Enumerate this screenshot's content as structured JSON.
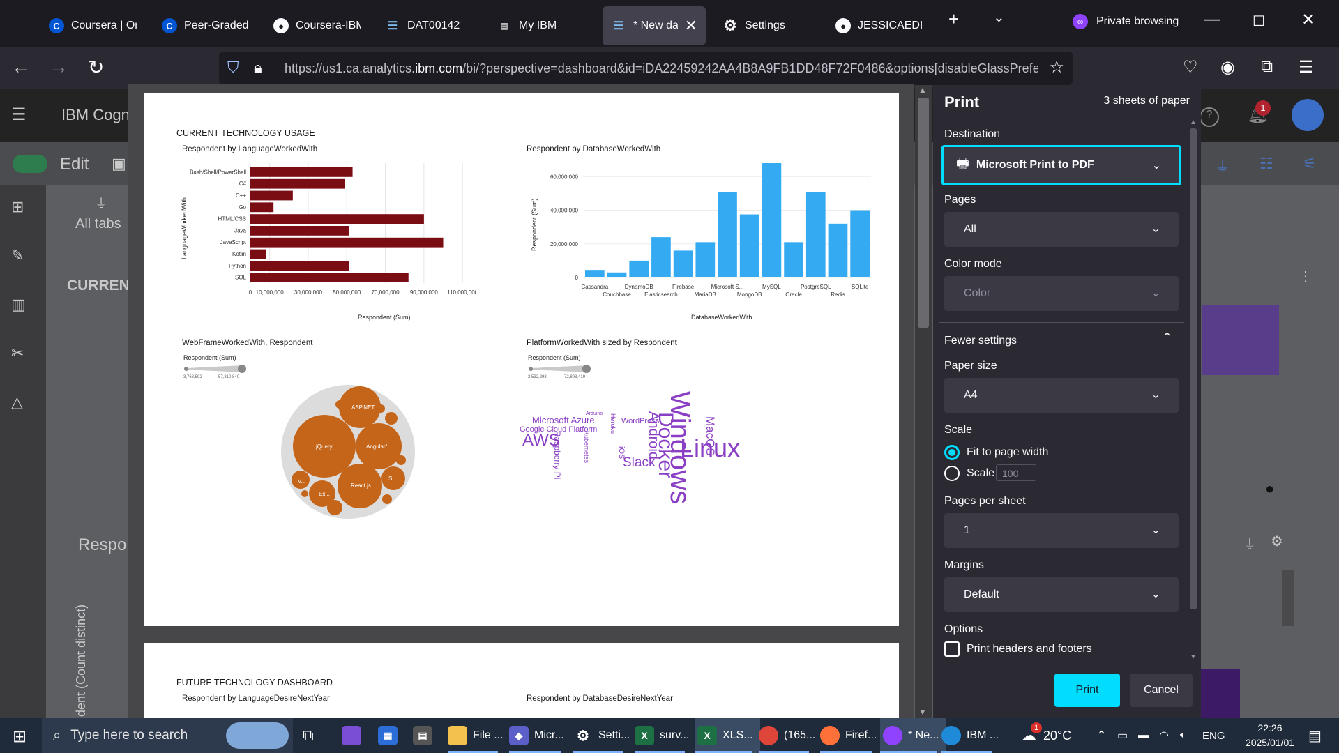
{
  "tabs": [
    {
      "label": "Coursera | Onli",
      "icon": "coursera-icon"
    },
    {
      "label": "Peer-Graded A",
      "icon": "coursera-icon"
    },
    {
      "label": "Coursera-IBM-",
      "icon": "github-icon"
    },
    {
      "label": "DAT00142",
      "icon": "doc-icon"
    },
    {
      "label": "My IBM",
      "icon": "ibm-icon"
    },
    {
      "label": "* New da",
      "icon": "doc-icon",
      "active": true
    },
    {
      "label": "Settings",
      "icon": "gear-icon"
    },
    {
      "label": "JESSICAEDIME",
      "icon": "github-icon"
    }
  ],
  "private_label": "Private browsing",
  "url": {
    "prefix": "https://us1.ca.analytics.",
    "domain": "ibm.com",
    "suffix": "/bi/?perspective=dashboard&id=iDA22459242AA4B8A9FB1DD48F72F0486&options[disableGlassPrefetch]=true"
  },
  "app": {
    "brand": "IBM Cogn",
    "edit_label": "Edit",
    "all_tabs": "All tabs",
    "current_heading": "CURREN",
    "respo": "Respo",
    "vertical_axis": "dent (Count distinct)"
  },
  "preview": {
    "section1_title": "CURRENT TECHNOLOGY USAGE",
    "chart1": {
      "title": "Respondent by LanguageWorkedWith",
      "ylabel": "LanguageWorkedWith",
      "xlabel": "Respondent (Sum)",
      "ticks": [
        "0",
        "10,000,000",
        "30,000,000",
        "50,000,000",
        "70,000,000",
        "90,000,000",
        "110,000,000"
      ]
    },
    "chart2": {
      "title": "Respondent by DatabaseWorkedWith",
      "ylabel": "Respondent (Sum)",
      "xlabel": "DatabaseWorkedWith",
      "ticks": [
        "0",
        "20,000,000",
        "40,000,000",
        "60,000,000"
      ]
    },
    "chart3": {
      "title": "WebFrameWorkedWith, Respondent",
      "legend_title": "Respondent (Sum)",
      "legend_min": "3,768,592",
      "legend_max": "57,310,840",
      "bubbles": [
        {
          "label": "ASP.NET",
          "value": 30
        },
        {
          "label": "jQuery",
          "value": 57
        },
        {
          "label": "Angular/...",
          "value": 45
        },
        {
          "label": "React.js",
          "value": 44
        },
        {
          "label": "S...",
          "value": 12
        },
        {
          "label": "V...",
          "value": 11
        },
        {
          "label": "Ex...",
          "value": 15
        }
      ]
    },
    "chart4": {
      "title": "PlatformWorkedWith sized by Respondent",
      "legend_title": "Respondent (Sum)",
      "legend_min": "2,532,293",
      "legend_max": "72,898,419"
    },
    "section2_title": "FUTURE TECHNOLOGY DASHBOARD",
    "chart5_title": "Respondent by LanguageDesireNextYear",
    "chart6_title": "Respondent by DatabaseDesireNextYear"
  },
  "chart_data": [
    {
      "type": "bar",
      "orientation": "horizontal",
      "title": "Respondent by LanguageWorkedWith",
      "xlabel": "Respondent (Sum)",
      "ylabel": "LanguageWorkedWith",
      "xlim": [
        0,
        115000000
      ],
      "color": "#7a0c14",
      "categories": [
        "Bash/Shell/PowerShell",
        "C#",
        "C++",
        "Go",
        "HTML/CSS",
        "Java",
        "JavaScript",
        "Kotlin",
        "Python",
        "SQL"
      ],
      "values": [
        53000000,
        49000000,
        22000000,
        12000000,
        90000000,
        51000000,
        100000000,
        8000000,
        51000000,
        82000000
      ]
    },
    {
      "type": "bar",
      "title": "Respondent by DatabaseWorkedWith",
      "xlabel": "DatabaseWorkedWith",
      "ylabel": "Respondent (Sum)",
      "ylim": [
        0,
        68000000
      ],
      "color": "#33aaf2",
      "categories": [
        "Cassandra",
        "Couchbase",
        "DynamoDB",
        "Elasticsearch",
        "Firebase",
        "MariaDB",
        "Microsoft S...",
        "MongoDB",
        "MySQL",
        "Oracle",
        "PostgreSQL",
        "Redis",
        "SQLite"
      ],
      "values": [
        4500000,
        3000000,
        10000000,
        24000000,
        16000000,
        21000000,
        51000000,
        37500000,
        68000000,
        21000000,
        51000000,
        32000000,
        40000000
      ]
    }
  ],
  "wordcloud": [
    {
      "text": "Windows",
      "size": 40
    },
    {
      "text": "Linux",
      "size": 36
    },
    {
      "text": "Docker",
      "size": 30
    },
    {
      "text": "Android",
      "size": 20
    },
    {
      "text": "AWS",
      "size": 24
    },
    {
      "text": "Slack",
      "size": 19
    },
    {
      "text": "MacOS",
      "size": 17
    },
    {
      "text": "Microsoft Azure",
      "size": 13
    },
    {
      "text": "Google Cloud Platform",
      "size": 11
    },
    {
      "text": "Raspberry Pi",
      "size": 12
    },
    {
      "text": "WordPress",
      "size": 11
    },
    {
      "text": "Kubernetes",
      "size": 9
    },
    {
      "text": "Heroku",
      "size": 9
    },
    {
      "text": "iOS",
      "size": 11
    },
    {
      "text": "Arduino",
      "size": 7
    }
  ],
  "print_panel": {
    "title": "Print",
    "sheets": "3 sheets of paper",
    "destination_label": "Destination",
    "destination": "Microsoft Print to PDF",
    "pages_label": "Pages",
    "pages": "All",
    "color_mode_label": "Color mode",
    "color_mode": "Color",
    "fewer_settings": "Fewer settings",
    "paper_size_label": "Paper size",
    "paper_size": "A4",
    "scale_label": "Scale",
    "fit_label": "Fit to page width",
    "scale_option": "Scale",
    "scale_value": "100",
    "pps_label": "Pages per sheet",
    "pps": "1",
    "margins_label": "Margins",
    "margins": "Default",
    "options_label": "Options",
    "headers_label": "Print headers and footers",
    "print_btn": "Print",
    "cancel_btn": "Cancel",
    "accent": "#00ddff"
  },
  "taskbar": {
    "search_placeholder": "Type here to search",
    "items": [
      {
        "label": "File ...",
        "icon": "folder-icon"
      },
      {
        "label": "Micr...",
        "icon": "app-icon"
      },
      {
        "label": "Setti...",
        "icon": "gear-icon"
      },
      {
        "label": "surv...",
        "icon": "excel-icon"
      },
      {
        "label": "XLS...",
        "icon": "excel-icon"
      },
      {
        "label": "(165...",
        "icon": "chrome-icon"
      },
      {
        "label": "Firef...",
        "icon": "firefox-icon"
      },
      {
        "label": "* Ne...",
        "icon": "firefox-private-icon"
      },
      {
        "label": "IBM ...",
        "icon": "edge-icon"
      }
    ],
    "weather": "20°C",
    "lang": "ENG",
    "time": "22:26",
    "date": "2025/01/01",
    "weather_badge": "1"
  }
}
